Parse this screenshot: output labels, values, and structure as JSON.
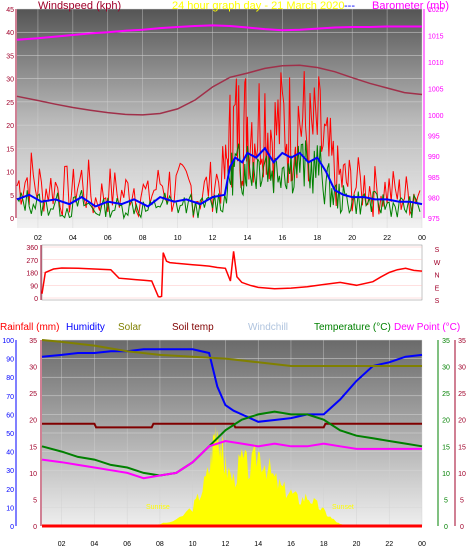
{
  "header": {
    "windspeed_label": "Windspeed (kph)",
    "title": "24 hour graph day - 21 March 2020",
    "title_sep": "---",
    "barometer_label": "Barometer (mb)"
  },
  "bottom_header": {
    "rainfall": "Rainfall (mm)",
    "humidity": "Humidity",
    "solar": "Solar",
    "soiltemp": "Soil temp",
    "windchill": "Windchill",
    "temperature": "Temperature (°C)",
    "dewpoint": "Dew Point (°C)"
  },
  "annotations": {
    "sunrise": "Sunrise",
    "sunset": "Sunset"
  },
  "colors": {
    "wind_avg": "#0000ff",
    "gust": "#ff0000",
    "wind_green": "#008000",
    "barometer": "#ff00ff",
    "barometer_trend": "#a0304a",
    "axis_left": "#a0002a",
    "winddir": "#ff0000",
    "humidity": "#0000ff",
    "solar": "#808000",
    "soiltemp": "#800000",
    "windchill": "#b0c4de",
    "temperature": "#008000",
    "dewpoint": "#ff00ff",
    "solar_fill": "#ffff00",
    "rain": "#ff0000"
  },
  "chart_data": [
    {
      "type": "line",
      "name": "wind-and-barometer",
      "x_ticks": [
        "02",
        "04",
        "06",
        "08",
        "10",
        "12",
        "14",
        "16",
        "18",
        "20",
        "22",
        "00"
      ],
      "x_range": [
        0.8,
        24
      ],
      "ylim_left": [
        0,
        45
      ],
      "y_ticks_left": [
        0,
        5,
        10,
        15,
        20,
        25,
        30,
        35,
        40,
        45
      ],
      "ylim_right_bottom": [
        975,
        1000
      ],
      "y_ticks_right_bottom": [
        975,
        980,
        985,
        990,
        995,
        1000
      ],
      "ylim_right_top": [
        1000,
        1020
      ],
      "y_ticks_right_top": [
        1000,
        1005,
        1010,
        1015,
        1020
      ],
      "series": [
        {
          "name": "Barometer",
          "axis": "right_top",
          "color": "#ff00ff",
          "x": [
            0.8,
            2,
            3,
            4,
            5,
            6,
            7,
            8,
            9,
            10,
            11,
            12,
            13,
            14,
            15,
            16,
            17,
            18,
            19,
            20,
            21,
            22,
            23,
            24
          ],
          "values": [
            1014.2,
            1014.5,
            1014.8,
            1015.1,
            1015.4,
            1015.6,
            1015.9,
            1016.1,
            1016.4,
            1016.6,
            1016.8,
            1016.9,
            1016.8,
            1016.5,
            1016.2,
            1016.0,
            1016.1,
            1016.3,
            1016.5,
            1016.6,
            1016.6,
            1016.7,
            1016.7,
            1016.7
          ]
        },
        {
          "name": "Barometer trend",
          "axis": "left",
          "color": "#a0304a",
          "x": [
            0.8,
            2,
            3,
            4,
            5,
            6,
            7,
            8,
            9,
            10,
            11,
            12,
            13,
            14,
            15,
            16,
            17,
            18,
            19,
            20,
            21,
            22,
            23,
            24
          ],
          "values": [
            26.2,
            25.3,
            24.5,
            23.8,
            23.2,
            22.7,
            22.3,
            22.2,
            22.5,
            23.5,
            25.4,
            28.2,
            30.3,
            31.2,
            32.2,
            32.8,
            32.9,
            32.4,
            31.5,
            30.2,
            29.0,
            28.0,
            27.0,
            26.6
          ]
        },
        {
          "name": "Gust",
          "axis": "left",
          "color": "#ff0000",
          "x": [
            0.8,
            1.5,
            2.2,
            3,
            3.8,
            4.5,
            5.3,
            6,
            6.8,
            7.5,
            8.3,
            9,
            9.8,
            10.5,
            11.3,
            12,
            12.7,
            13,
            13.3,
            13.7,
            14,
            14.5,
            15,
            15.5,
            16,
            16.5,
            17,
            17.5,
            18,
            18.5,
            19,
            19.5,
            20,
            20.7,
            21.3,
            22,
            22.7,
            23.3,
            24
          ],
          "values": [
            7,
            9,
            6,
            7,
            5,
            8,
            4,
            6,
            5,
            7,
            4,
            8,
            6,
            7,
            5,
            8,
            9,
            17,
            20,
            19,
            22,
            20,
            23,
            18,
            21,
            19,
            22,
            17,
            19,
            14,
            9,
            8,
            7,
            7,
            6,
            6,
            5,
            5,
            6
          ]
        },
        {
          "name": "Wind average",
          "axis": "left",
          "color": "#0000ff",
          "x": [
            0.8,
            1.5,
            2.2,
            3,
            3.8,
            4.5,
            5.3,
            6,
            6.8,
            7.5,
            8.3,
            9,
            9.8,
            10.5,
            11.3,
            12,
            12.7,
            13,
            13.3,
            13.7,
            14,
            14.5,
            15,
            15.5,
            16,
            16.5,
            17,
            17.5,
            18,
            18.5,
            19,
            19.5,
            20,
            20.7,
            21.3,
            22,
            22.7,
            23.3,
            24
          ],
          "values": [
            4,
            5,
            3.5,
            4,
            3,
            4.5,
            2.5,
            3.5,
            3,
            4,
            2.5,
            4.5,
            3.5,
            4,
            3,
            4.5,
            5,
            11,
            13,
            12,
            14,
            13,
            15,
            12,
            14,
            13,
            14,
            12,
            13,
            10,
            6,
            5,
            4.5,
            4.5,
            4,
            4,
            3.5,
            3.5,
            3
          ]
        },
        {
          "name": "Wind green",
          "axis": "left",
          "color": "#008000",
          "x": [
            0.8,
            1.5,
            2.2,
            3,
            3.8,
            4.5,
            5.3,
            6,
            6.8,
            7.5,
            8.3,
            9,
            9.8,
            10.5,
            11.3,
            12,
            12.7,
            13,
            13.3,
            13.7,
            14,
            14.5,
            15,
            15.5,
            16,
            16.5,
            17,
            17.5,
            18,
            18.5,
            19,
            19.5,
            20,
            20.7,
            21.3,
            22,
            22.7,
            23.3,
            24
          ],
          "values": [
            3,
            4,
            2.5,
            3,
            2,
            3.5,
            1.5,
            2.5,
            2,
            3,
            1.5,
            3.5,
            2.5,
            3,
            2,
            3.5,
            4,
            9,
            11,
            10,
            12,
            11,
            13,
            10,
            12,
            11,
            12,
            10,
            11,
            8,
            5,
            4,
            3.5,
            3.5,
            3,
            3,
            2.5,
            2.5,
            2.5
          ]
        }
      ]
    },
    {
      "type": "line",
      "name": "wind-direction",
      "x_range": [
        0.8,
        24
      ],
      "ylim": [
        0,
        360
      ],
      "y_ticks": [
        0,
        90,
        180,
        270,
        360
      ],
      "y_tick_labels": [
        "0",
        "90",
        "180",
        "270",
        "360"
      ],
      "compass_labels": [
        "S",
        "E",
        "N",
        "W",
        "S"
      ],
      "series": [
        {
          "name": "Wind direction",
          "color": "#ff0000",
          "x": [
            0.8,
            1.0,
            1.5,
            2,
            3,
            4,
            5,
            5.5,
            6,
            6.5,
            7,
            7.5,
            7.9,
            8.0,
            8.1,
            8.2,
            8.4,
            8.6,
            9,
            9.5,
            10,
            10.5,
            11,
            11.5,
            12,
            12.3,
            12.5,
            12.7,
            13,
            13.5,
            14,
            15,
            16,
            17,
            18,
            19,
            20,
            21,
            21.5,
            22,
            22.5,
            23,
            23.5,
            24
          ],
          "values": [
            30,
            180,
            205,
            212,
            210,
            205,
            200,
            140,
            135,
            130,
            125,
            120,
            10,
            8,
            12,
            320,
            260,
            250,
            245,
            240,
            235,
            230,
            225,
            215,
            210,
            120,
            330,
            150,
            110,
            90,
            75,
            65,
            70,
            80,
            95,
            110,
            90,
            115,
            150,
            180,
            200,
            210,
            195,
            190
          ]
        }
      ]
    },
    {
      "type": "line",
      "name": "humidity-temperature-solar",
      "x_range": [
        0.8,
        24
      ],
      "ylim_left": [
        0,
        100
      ],
      "y_ticks_left": [
        0,
        5,
        10,
        15,
        20,
        25,
        30,
        35,
        40,
        45,
        50,
        55,
        60,
        65,
        70,
        75,
        80,
        85,
        90,
        95,
        100
      ],
      "y_tick_labels_left": [
        "0",
        "10",
        "20",
        "30",
        "40",
        "50",
        "60",
        "70",
        "80",
        "90",
        "100"
      ],
      "ylim_left_inner": [
        0,
        35
      ],
      "y_ticks_left_inner": [
        0,
        5,
        10,
        15,
        20,
        25,
        30,
        35
      ],
      "ylim_right": [
        0,
        35
      ],
      "y_ticks_right": [
        0,
        5,
        10,
        15,
        20,
        25,
        30,
        35
      ],
      "x_ticks": [
        "02",
        "04",
        "06",
        "08",
        "10",
        "12",
        "14",
        "16",
        "18",
        "20",
        "22",
        "00"
      ],
      "series": [
        {
          "name": "Humidity",
          "axis": "left",
          "color": "#0000ff",
          "x": [
            0.8,
            2,
            3,
            4,
            5,
            6,
            7,
            8,
            9,
            10,
            11,
            11.5,
            12,
            12.5,
            13,
            14,
            15,
            16,
            17,
            18,
            19,
            20,
            21,
            22,
            23,
            24
          ],
          "values": [
            91,
            92,
            93,
            93,
            94,
            94,
            95,
            95,
            95,
            95,
            93,
            75,
            65,
            62,
            60,
            56,
            57,
            58,
            60,
            60,
            68,
            78,
            86,
            88,
            91,
            92
          ]
        },
        {
          "name": "Solar",
          "axis": "left",
          "color": "#808000",
          "x": [
            0.8,
            2,
            4,
            6,
            8,
            10,
            12,
            14,
            16,
            18,
            20,
            22,
            24
          ],
          "values": [
            100,
            99,
            97,
            94,
            92,
            91,
            90,
            88,
            86,
            86,
            86,
            86,
            86
          ]
        },
        {
          "name": "Soil temp",
          "axis": "left",
          "color": "#800000",
          "x": [
            0.8,
            4,
            4.1,
            7.5,
            7.6,
            12.5,
            12.6,
            18,
            18.1,
            24
          ],
          "values": [
            55,
            55,
            53,
            53,
            55,
            55,
            53,
            53,
            55,
            55
          ]
        },
        {
          "name": "Temperature",
          "axis": "right",
          "color": "#008000",
          "x": [
            0.8,
            2,
            3,
            4,
            5,
            6,
            7,
            8,
            9,
            10,
            11,
            12,
            13,
            14,
            15,
            16,
            17,
            18,
            19,
            20,
            21,
            22,
            23,
            24
          ],
          "values": [
            15,
            14,
            13,
            12.5,
            11.5,
            11,
            10,
            9.5,
            10,
            12,
            15,
            18,
            20,
            21,
            21.5,
            21,
            21,
            20,
            18,
            17,
            16.5,
            16,
            15.5,
            15
          ]
        },
        {
          "name": "Dew Point",
          "axis": "right",
          "color": "#ff00ff",
          "x": [
            0.8,
            2,
            3,
            4,
            5,
            6,
            7,
            8,
            9,
            10,
            11,
            12,
            13,
            14,
            15,
            16,
            17,
            18,
            19,
            20,
            21,
            22,
            23,
            24
          ],
          "values": [
            12.5,
            12,
            11.5,
            11,
            10.5,
            10,
            9,
            9.5,
            10,
            12,
            15,
            16,
            15.5,
            15,
            15.5,
            15,
            15,
            15.5,
            15,
            14.5,
            14.5,
            14.5,
            14.5,
            14.5
          ]
        },
        {
          "name": "Solar radiation",
          "axis": "left",
          "color": "#ffff00",
          "x": [
            7.5,
            8,
            9,
            10,
            10.5,
            11,
            11.3,
            11.5,
            11.8,
            12,
            12.5,
            13,
            13.5,
            14,
            14.5,
            15,
            15.5,
            16,
            16.5,
            17,
            17.5,
            18,
            18.5,
            19,
            19.5
          ],
          "values": [
            0,
            1,
            3,
            10,
            18,
            30,
            48,
            55,
            40,
            32,
            25,
            36,
            30,
            40,
            33,
            25,
            20,
            18,
            14,
            16,
            12,
            8,
            4,
            1,
            0
          ]
        },
        {
          "name": "Rainfall",
          "axis": "left",
          "color": "#ff0000",
          "x": [
            0.8,
            24
          ],
          "values": [
            0,
            0
          ]
        }
      ]
    }
  ]
}
